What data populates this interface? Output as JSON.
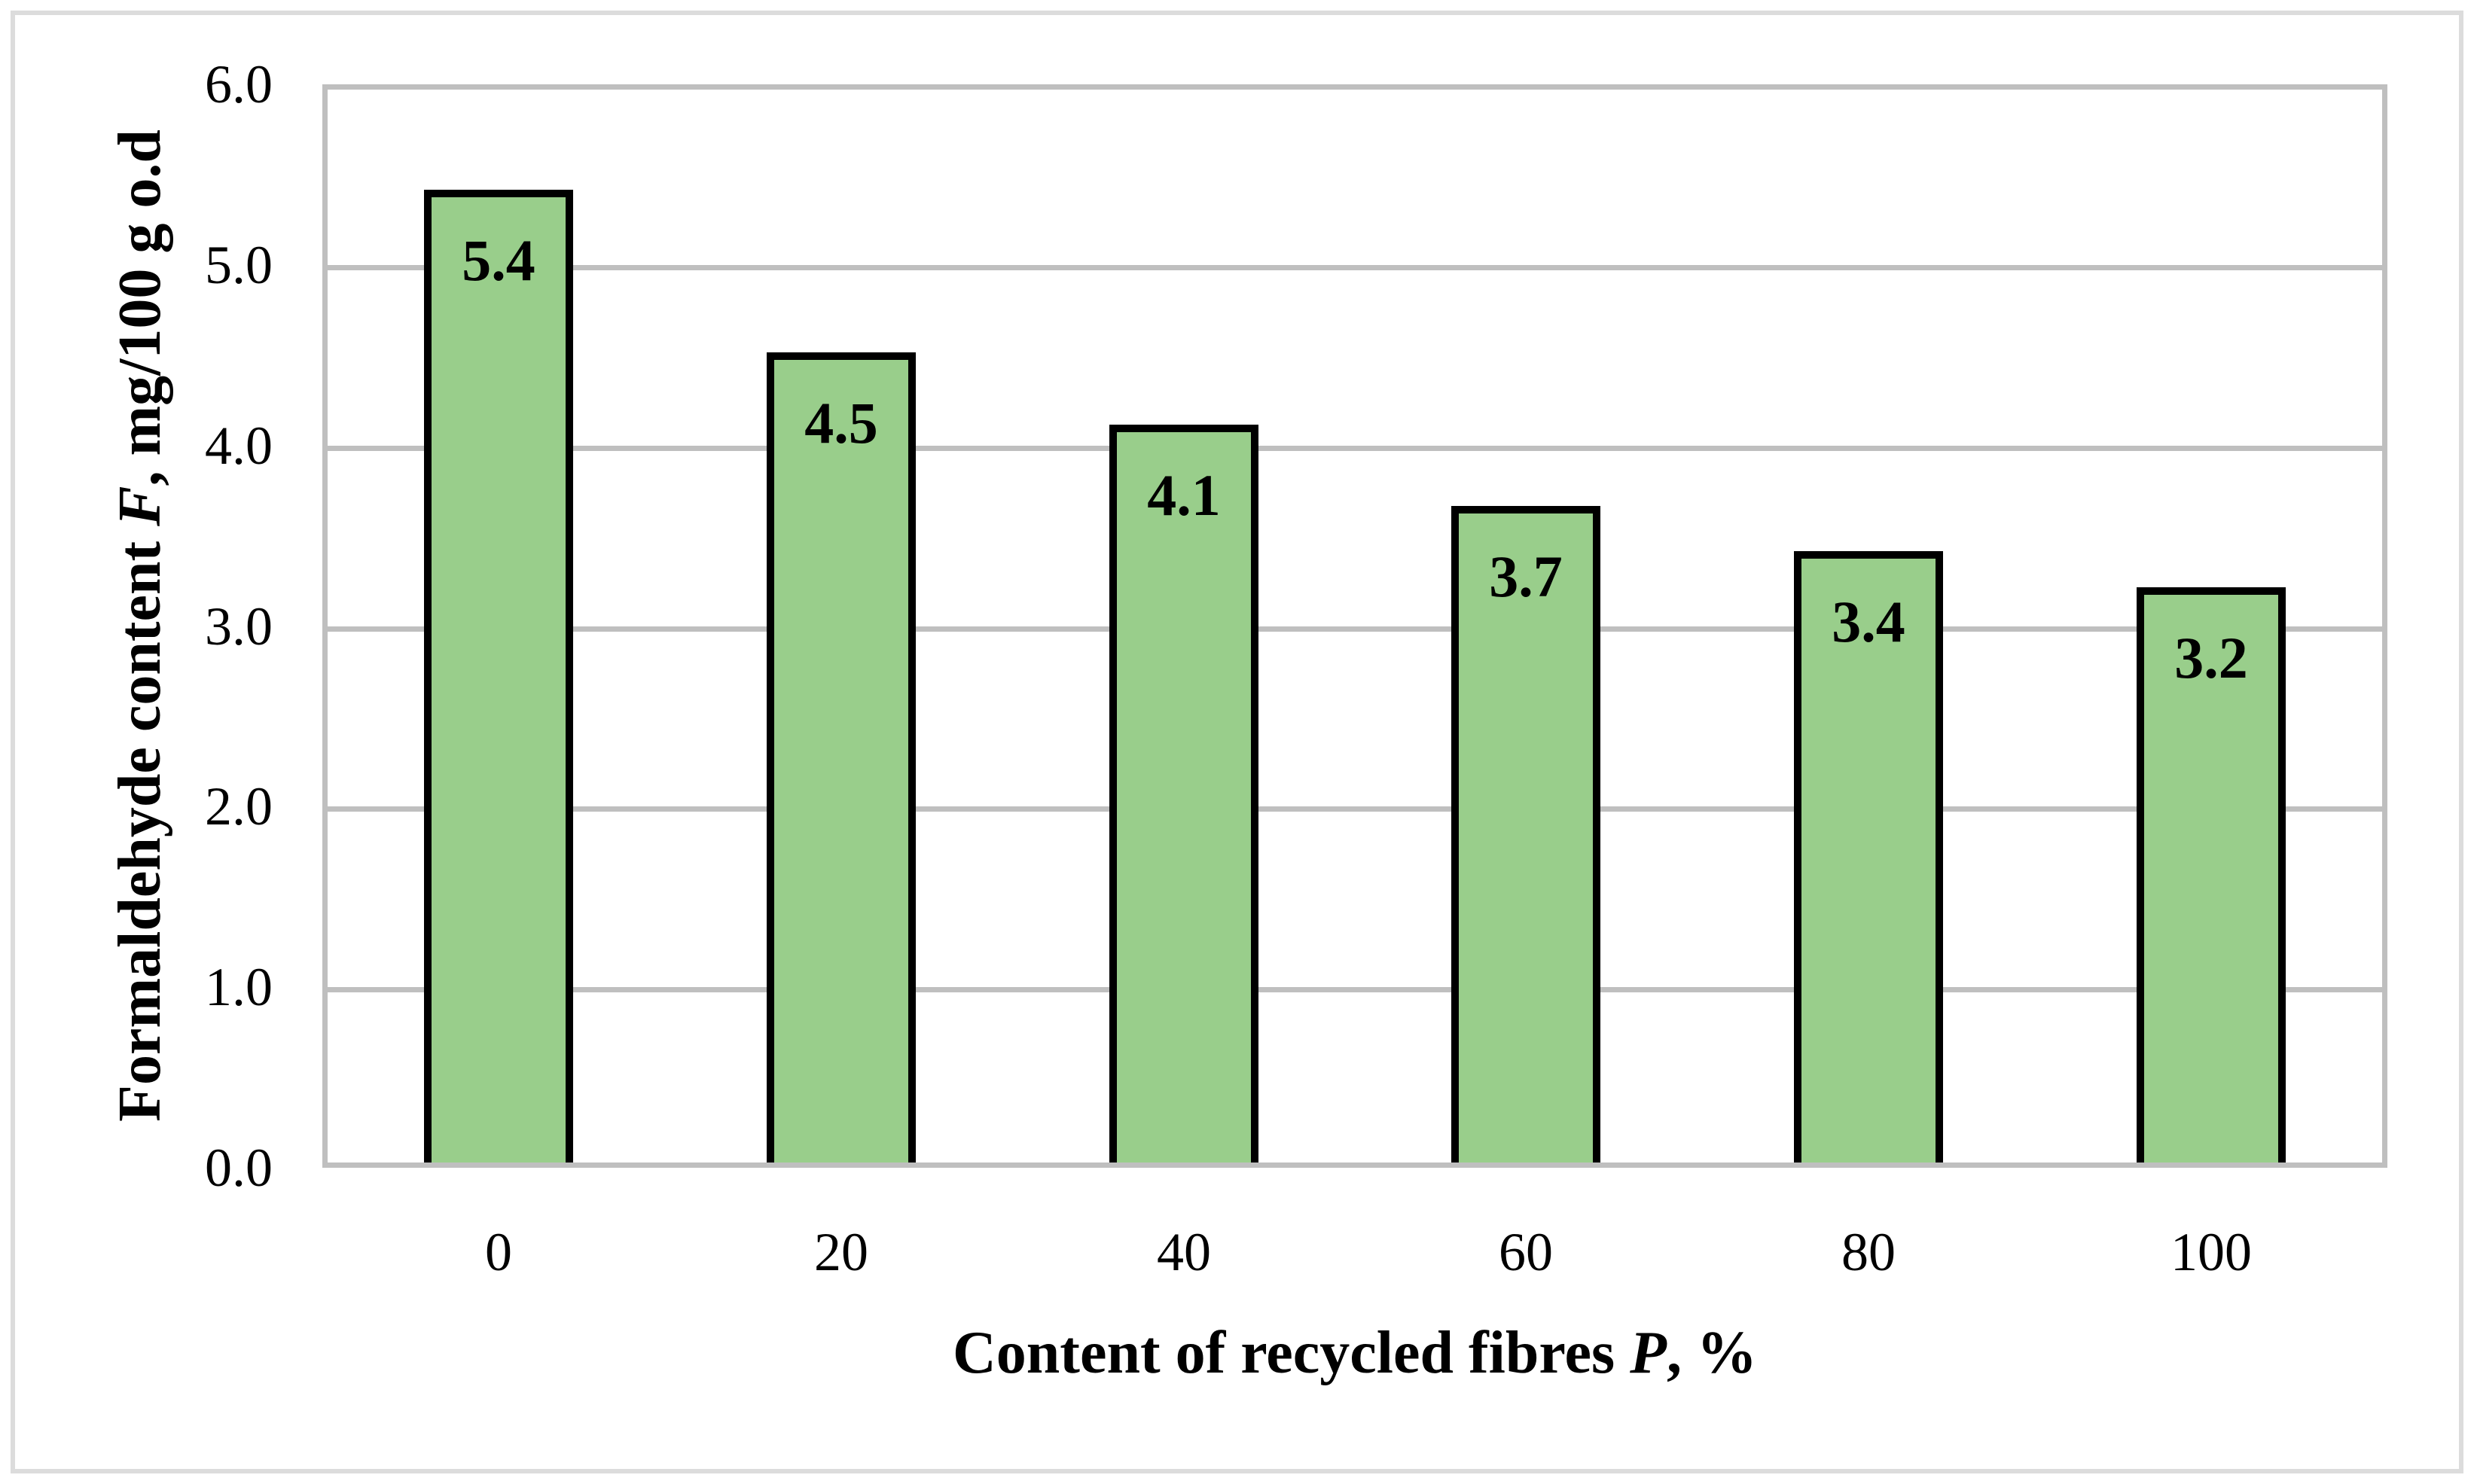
{
  "figure": {
    "background_color": "#ffffff",
    "frame_border_color": "#dcdcdc"
  },
  "chart_data": {
    "type": "bar",
    "title": "",
    "categories": [
      "0",
      "20",
      "40",
      "60",
      "80",
      "100"
    ],
    "values": [
      5.4,
      4.5,
      4.1,
      3.7,
      3.4,
      3.2
    ],
    "drawn_heights": [
      5.4,
      4.5,
      4.1,
      3.65,
      3.4,
      3.2
    ],
    "data_labels": [
      "5.4",
      "4.5",
      "4.1",
      "3.7",
      "3.4",
      "3.2"
    ],
    "xlabel_text": "Content of recycled fibres P, %",
    "xlabel_parts": [
      {
        "text": "Content of recycled fibres ",
        "italic": false
      },
      {
        "text": "P",
        "italic": true
      },
      {
        "text": ", %",
        "italic": false
      }
    ],
    "ylabel_text": "Formaldehyde content F, mg/100 g o.d",
    "ylabel_parts": [
      {
        "text": "Formaldehyde content ",
        "italic": false
      },
      {
        "text": "F",
        "italic": true
      },
      {
        "text": ", mg/100 g o.d",
        "italic": false
      }
    ],
    "y_tick_labels": [
      "6.0",
      "5.0",
      "4.0",
      "3.0",
      "2.0",
      "1.0",
      "0.0"
    ],
    "ylim": [
      0,
      6
    ],
    "y_major_step": 1.0,
    "grid": "horizontal",
    "legend_position": "none",
    "bar_fill_color": "#99ce8b",
    "bar_border_color": "#000000",
    "gridline_color": "#bfbfbf",
    "axis_line_color": "#bfbfbf",
    "text_color": "#000000"
  }
}
